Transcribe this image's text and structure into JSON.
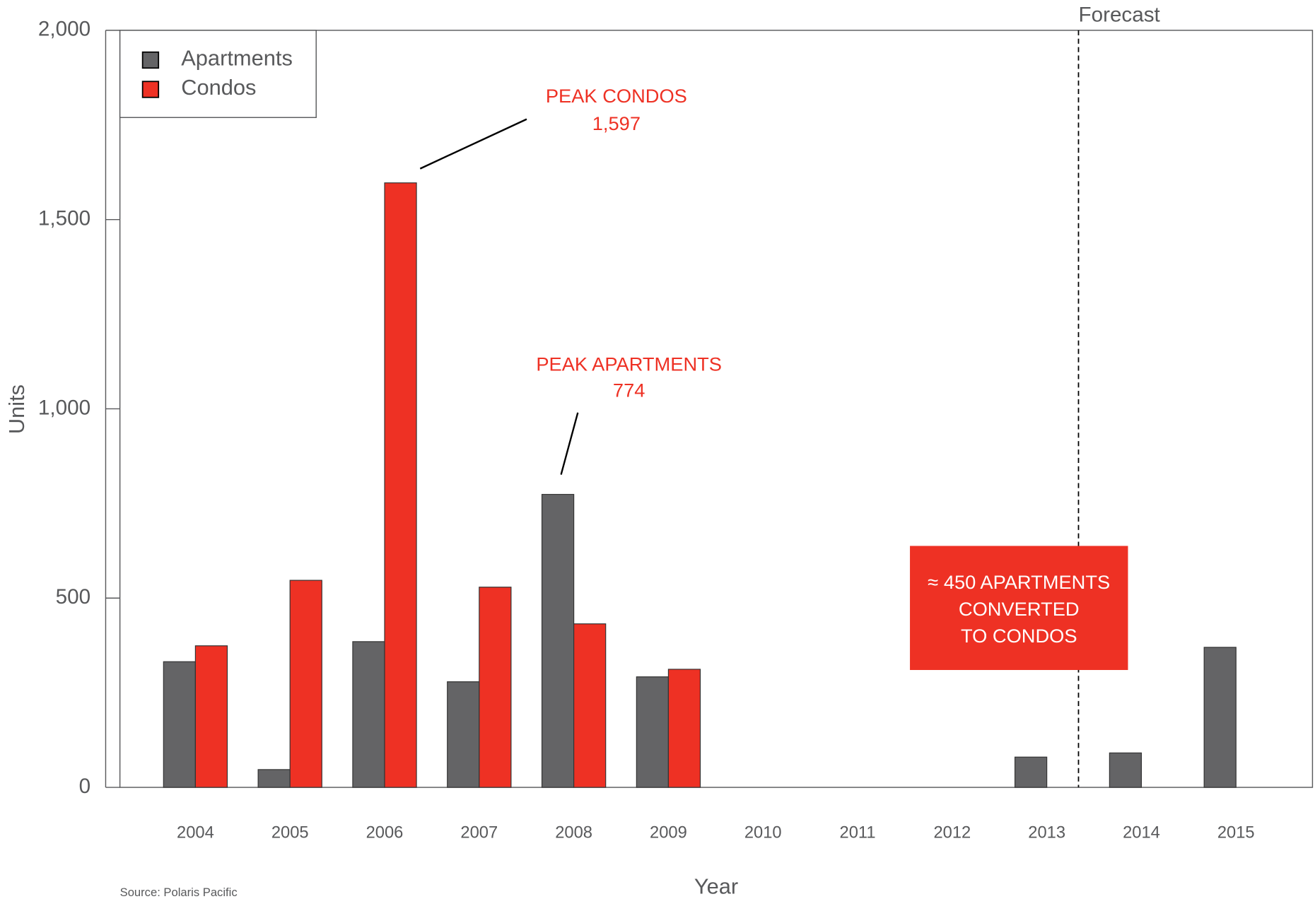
{
  "chart_data": {
    "type": "bar",
    "x_label": "Year",
    "y_label": "Units",
    "source": "Source: Polaris Pacific",
    "categories": [
      "2004",
      "2005",
      "2006",
      "2007",
      "2008",
      "2009",
      "2010",
      "2011",
      "2012",
      "2013",
      "2014",
      "2015"
    ],
    "series": [
      {
        "name": "Apartments",
        "color": "#646466",
        "values": [
          332,
          47,
          385,
          279,
          774,
          292,
          0,
          0,
          0,
          80,
          91,
          370
        ]
      },
      {
        "name": "Condos",
        "color": "#ee3124",
        "values": [
          374,
          547,
          1597,
          529,
          432,
          312,
          0,
          0,
          0,
          0,
          0,
          0
        ]
      }
    ],
    "ylim": [
      0,
      2000
    ],
    "yticks": [
      0,
      500,
      {
        "value": 1000,
        "label": "1,000"
      },
      {
        "value": 1500,
        "label": "1,500"
      },
      {
        "value": 2000,
        "label": "2,000"
      }
    ],
    "legend": "top-left",
    "forecast_label": "Forecast",
    "annotations": [
      {
        "lines": [
          "PEAK CONDOS",
          "1,597"
        ]
      },
      {
        "lines": [
          "PEAK APARTMENTS",
          "774"
        ]
      },
      {
        "lines": [
          "≈ 450 APARTMENTS",
          "CONVERTED",
          "TO CONDOS"
        ]
      }
    ]
  }
}
